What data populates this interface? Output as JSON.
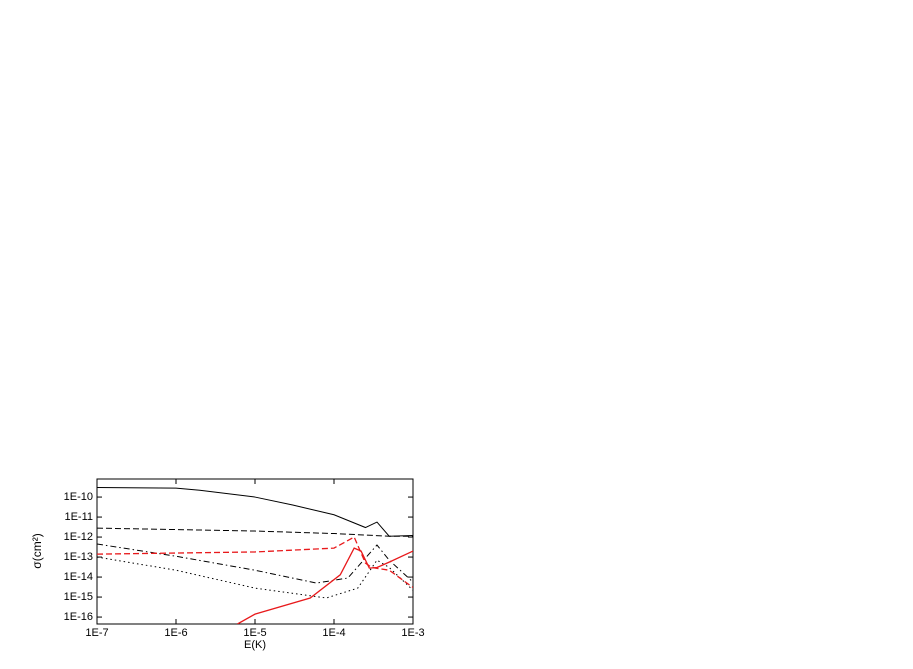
{
  "chart_data": {
    "type": "line",
    "xlabel": "E(K)",
    "ylabel": "σ(cm²)",
    "xscale": "log",
    "yscale": "log",
    "xlim": [
      1e-07,
      0.001
    ],
    "ylim": [
      4.5e-17,
      8e-10
    ],
    "xticks": [
      {
        "value": 1e-07,
        "label": "1E-7"
      },
      {
        "value": 1e-06,
        "label": "1E-6"
      },
      {
        "value": 1e-05,
        "label": "1E-5"
      },
      {
        "value": 0.0001,
        "label": "1E-4"
      },
      {
        "value": 0.001,
        "label": "1E-3"
      }
    ],
    "yticks": [
      {
        "value": 1e-10,
        "label": "1E-10"
      },
      {
        "value": 1e-11,
        "label": "1E-11"
      },
      {
        "value": 1e-12,
        "label": "1E-12"
      },
      {
        "value": 1e-13,
        "label": "1E-13"
      },
      {
        "value": 1e-14,
        "label": "1E-14"
      },
      {
        "value": 1e-15,
        "label": "1E-15"
      },
      {
        "value": 1e-16,
        "label": "1E-16"
      }
    ],
    "series": [
      {
        "color": "#000000",
        "style": "solid",
        "x": [
          1e-07,
          1e-06,
          2e-06,
          1e-05,
          3e-05,
          0.0001,
          0.00025,
          0.00035,
          0.0005,
          0.001
        ],
        "values": [
          3e-10,
          2.8e-10,
          2.2e-10,
          1e-10,
          4e-11,
          1.3e-11,
          3e-12,
          5.6e-12,
          1.1e-12,
          1.2e-12
        ]
      },
      {
        "color": "#000000",
        "style": "dashed",
        "x": [
          1e-07,
          1e-05,
          0.0001,
          0.0005,
          0.001
        ],
        "values": [
          2.8e-12,
          2e-12,
          1.5e-12,
          1.1e-12,
          1.1e-12
        ]
      },
      {
        "color": "#000000",
        "style": "dashdot",
        "x": [
          1e-07,
          1e-06,
          1e-05,
          6e-05,
          0.00015,
          0.00035,
          0.0005,
          0.001
        ],
        "values": [
          4.5e-13,
          1.1e-13,
          2.2e-14,
          5e-15,
          9e-15,
          4e-13,
          7e-14,
          5.6e-15
        ]
      },
      {
        "color": "#000000",
        "style": "dotted",
        "x": [
          1e-07,
          1e-06,
          1e-05,
          8e-05,
          0.0002,
          0.00035,
          0.0005,
          0.001
        ],
        "values": [
          1e-13,
          2.2e-14,
          2.8e-15,
          9e-16,
          2.8e-15,
          7e-14,
          3e-14,
          2.2e-15
        ]
      },
      {
        "color": "#e8191b",
        "style": "dashed",
        "x": [
          1e-07,
          1e-05,
          0.0001,
          0.00018,
          0.00025,
          0.0003,
          0.0005,
          0.001
        ],
        "values": [
          1.4e-13,
          1.8e-13,
          2.8e-13,
          1e-12,
          5e-14,
          3e-14,
          2.2e-14,
          3e-15
        ]
      },
      {
        "color": "#e8191b",
        "style": "solid",
        "x": [
          6e-06,
          1e-05,
          5e-05,
          0.00012,
          0.00018,
          0.00022,
          0.00028,
          0.00035,
          0.0005,
          0.001
        ],
        "values": [
          4.5e-17,
          1.4e-16,
          9e-16,
          1.3e-14,
          2.8e-13,
          2e-13,
          2.8e-14,
          3e-14,
          5.6e-14,
          2e-13
        ]
      }
    ]
  }
}
